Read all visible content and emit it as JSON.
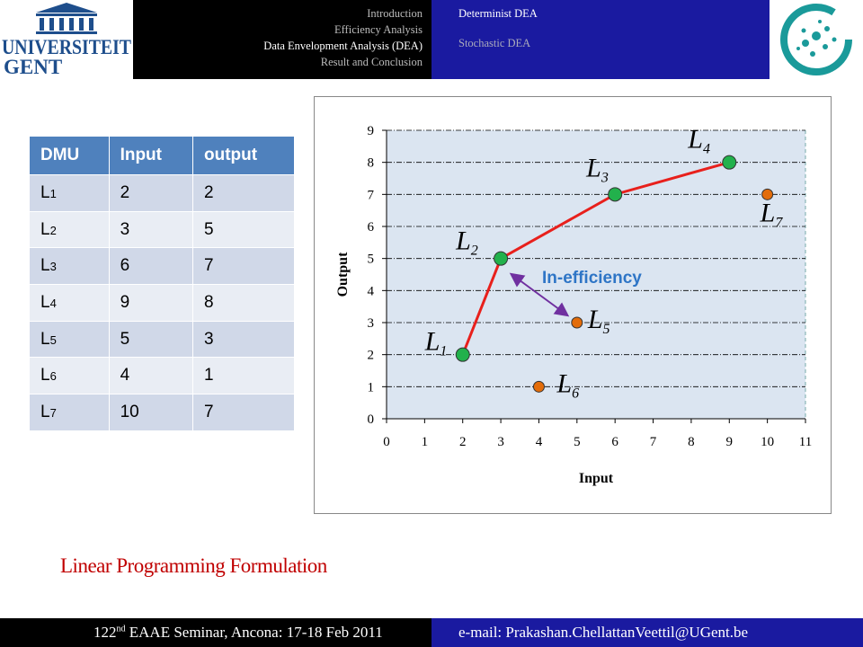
{
  "header": {
    "logo_text": [
      "UNIVERSITEIT",
      "GENT"
    ],
    "nav": [
      "Introduction",
      "Efficiency Analysis",
      "Data Envelopment Analysis (DEA)",
      "Result and Conclusion"
    ],
    "subnav": [
      "Determinist DEA",
      "Stochastic DEA"
    ]
  },
  "table": {
    "columns": [
      "DMU",
      "Input",
      "output"
    ],
    "rows": [
      {
        "dmu": "L",
        "sub": "1",
        "input": 2,
        "output": 2
      },
      {
        "dmu": "L",
        "sub": "2",
        "input": 3,
        "output": 5
      },
      {
        "dmu": "L",
        "sub": "3",
        "input": 6,
        "output": 7
      },
      {
        "dmu": "L",
        "sub": "4",
        "input": 9,
        "output": 8
      },
      {
        "dmu": "L",
        "sub": "5",
        "input": 5,
        "output": 3
      },
      {
        "dmu": "L",
        "sub": "6",
        "input": 4,
        "output": 1
      },
      {
        "dmu": "L",
        "sub": "7",
        "input": 10,
        "output": 7
      }
    ]
  },
  "chart_data": {
    "type": "scatter",
    "x_label": "Input",
    "y_label": "Output",
    "annotation": "In-efficiency",
    "xlim": [
      0,
      11
    ],
    "ylim": [
      0,
      9
    ],
    "xticks": [
      0,
      1,
      2,
      3,
      4,
      5,
      6,
      7,
      8,
      9,
      10,
      11
    ],
    "yticks": [
      0,
      1,
      2,
      3,
      4,
      5,
      6,
      7,
      8,
      9
    ],
    "grid": true,
    "background": "#dbe5f1",
    "series": [
      {
        "color": "#22b14c",
        "line": true,
        "line_color": "#e8201c",
        "x": [
          2,
          3,
          6,
          9
        ],
        "values": [
          2,
          5,
          7,
          8
        ],
        "labels": [
          {
            "base": "L",
            "sub": "1"
          },
          {
            "base": "L",
            "sub": "2"
          },
          {
            "base": "L",
            "sub": "3"
          },
          {
            "base": "L",
            "sub": "4"
          }
        ]
      },
      {
        "color": "#e36c0a",
        "line": false,
        "x": [
          5,
          4,
          10
        ],
        "values": [
          3,
          1,
          7
        ],
        "labels": [
          {
            "base": "L",
            "sub": "5"
          },
          {
            "base": "L",
            "sub": "6"
          },
          {
            "base": "L",
            "sub": "7"
          }
        ]
      }
    ]
  },
  "section_title": "Linear Programming Formulation",
  "footer": {
    "left": [
      "122",
      "nd",
      " EAAE Seminar, Ancona: 17-18 Feb 2011"
    ],
    "right": "e-mail: Prakashan.ChellattanVeettil@UGent.be"
  }
}
